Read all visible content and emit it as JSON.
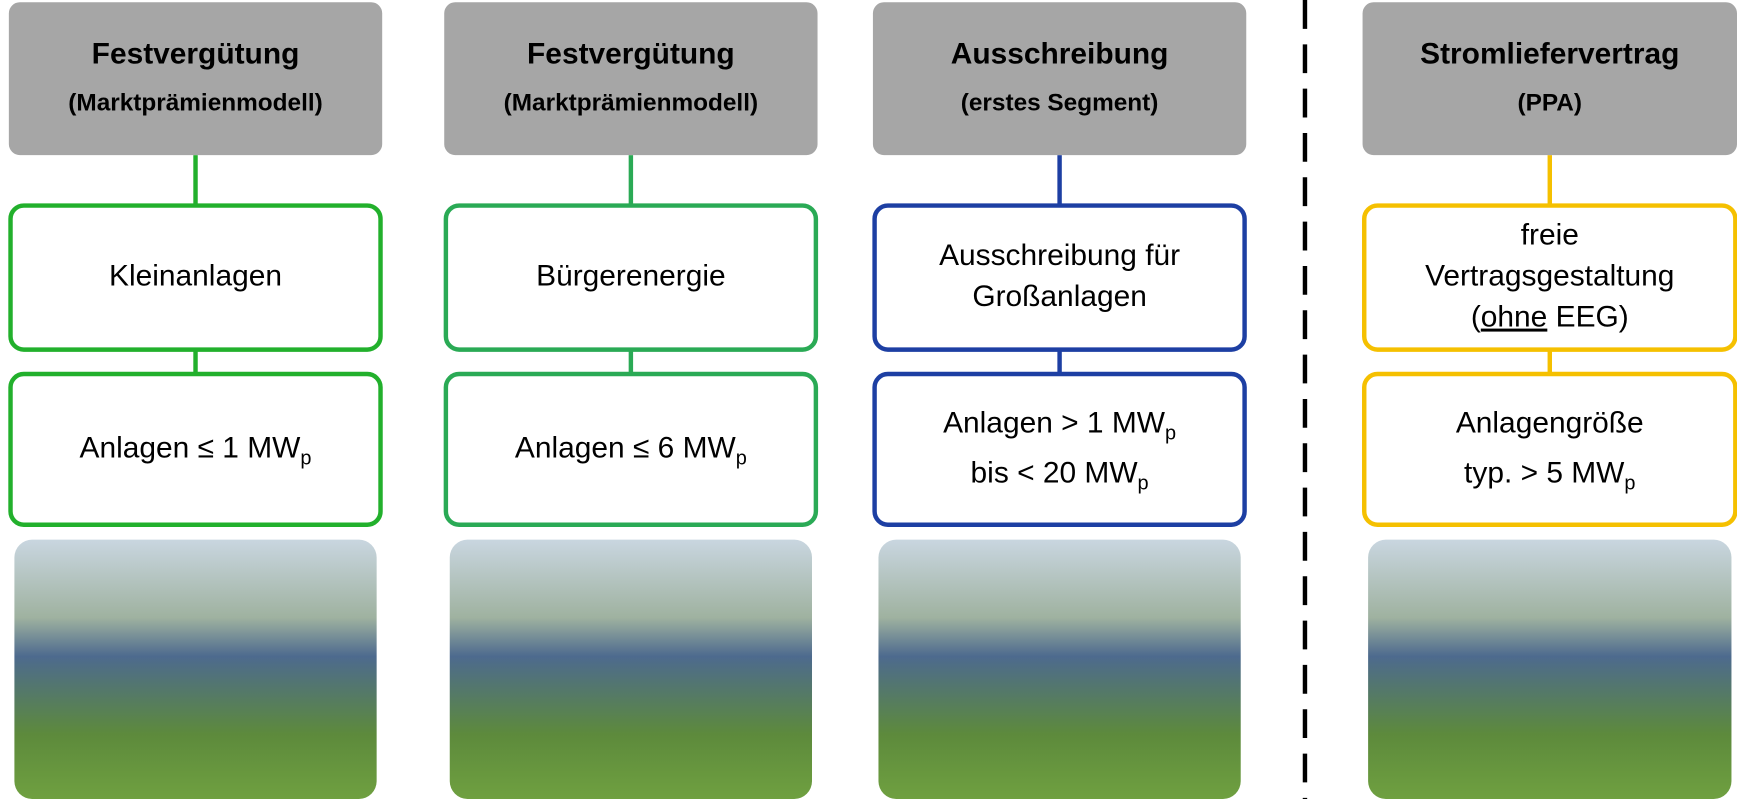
{
  "columns": [
    {
      "header": {
        "title": "Festvergütung",
        "subtitle": "(Marktprämienmodell)"
      },
      "color": "#22b02c",
      "box1": [
        [
          {
            "text": "Kleinanlagen"
          }
        ]
      ],
      "box2": [
        [
          {
            "text": "Anlagen ≤ 1 MW"
          },
          {
            "text": "p",
            "format": "sub"
          }
        ]
      ]
    },
    {
      "header": {
        "title": "Festvergütung",
        "subtitle": "(Marktprämienmodell)"
      },
      "color": "#2aaa55",
      "box1": [
        [
          {
            "text": "Bürgerenergie"
          }
        ]
      ],
      "box2": [
        [
          {
            "text": "Anlagen ≤ 6 MW"
          },
          {
            "text": "p",
            "format": "sub"
          }
        ]
      ]
    },
    {
      "header": {
        "title": "Ausschreibung",
        "subtitle": "(erstes Segment)"
      },
      "color": "#1d3fa3",
      "box1": [
        [
          {
            "text": "Ausschreibung für"
          }
        ],
        [
          {
            "text": "Großanlagen"
          }
        ]
      ],
      "box2": [
        [
          {
            "text": "Anlagen > 1 MW"
          },
          {
            "text": "p",
            "format": "sub"
          }
        ],
        [
          {
            "text": "bis < 20 MW"
          },
          {
            "text": "p",
            "format": "sub"
          }
        ]
      ]
    },
    {
      "header": {
        "title": "Stromliefervertrag",
        "subtitle": "(PPA)"
      },
      "color": "#f5c000",
      "box1": [
        [
          {
            "text": "freie"
          }
        ],
        [
          {
            "text": "Vertragsgestaltung"
          }
        ],
        [
          {
            "text": "("
          },
          {
            "text": "ohne",
            "format": "underline"
          },
          {
            "text": " EEG)"
          }
        ]
      ],
      "box2": [
        [
          {
            "text": "Anlagengröße"
          }
        ],
        [
          {
            "text": "typ. > 5 MW"
          },
          {
            "text": "p",
            "format": "sub"
          }
        ]
      ]
    }
  ]
}
